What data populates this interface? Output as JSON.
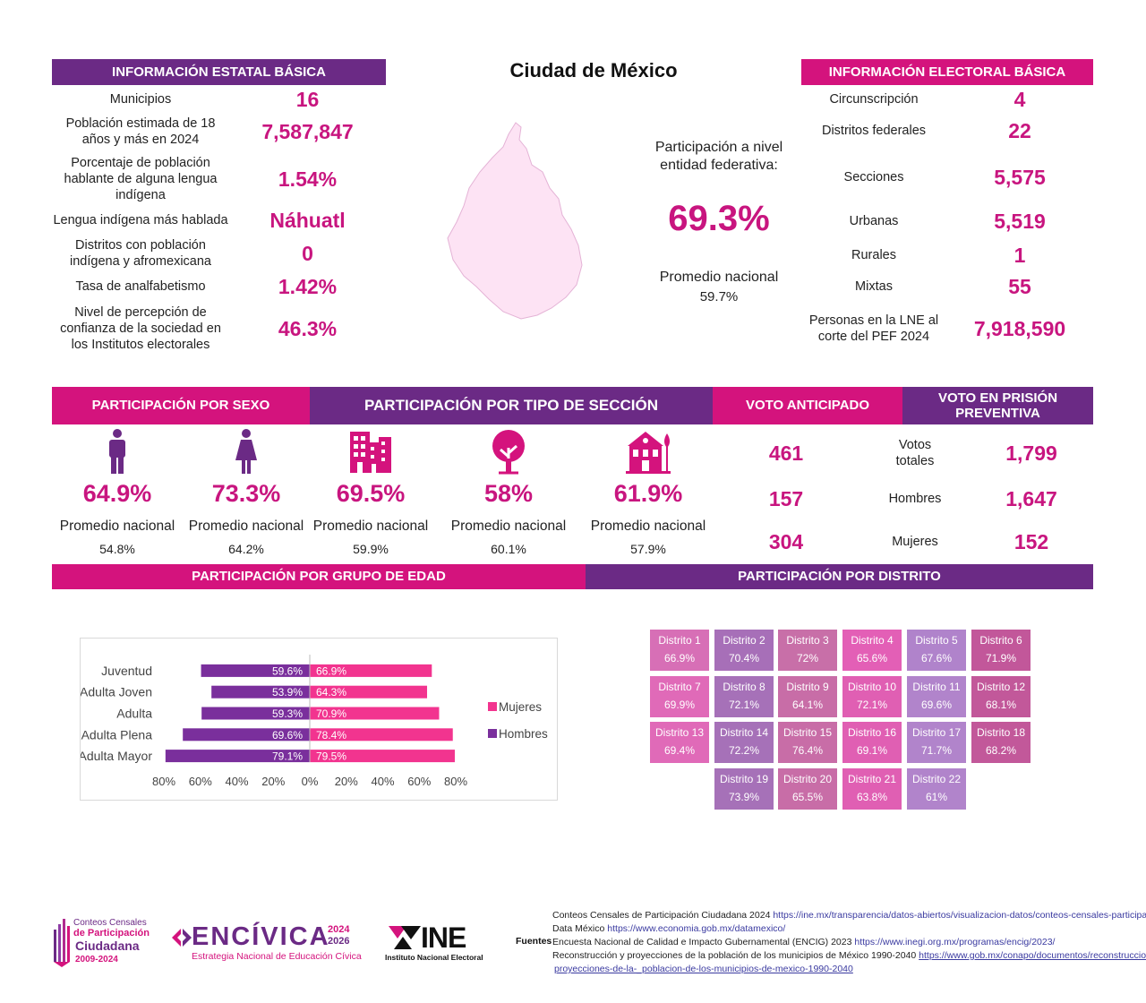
{
  "title": "Ciudad de México",
  "estatal": {
    "header": "INFORMACIÓN ESTATAL BÁSICA",
    "rows": [
      {
        "label": "Municipios",
        "value": "16"
      },
      {
        "label": "Población estimada de 18 años y más en 2024",
        "value": "7,587,847"
      },
      {
        "label": "Porcentaje de población hablante de alguna lengua indígena",
        "value": "1.54%"
      },
      {
        "label": "Lengua indígena más hablada",
        "value": "Náhuatl"
      },
      {
        "label": "Distritos con población indígena y afromexicana",
        "value": "0"
      },
      {
        "label": "Tasa de analfabetismo",
        "value": "1.42%"
      },
      {
        "label": "Nivel de percepción de confianza de la sociedad en los Institutos electorales",
        "value": "46.3%"
      }
    ]
  },
  "center": {
    "participacion_label": "Participación a nivel entidad federativa:",
    "participacion_value": "69.3%",
    "promedio_label": "Promedio nacional",
    "promedio_value": "59.7%"
  },
  "electoral": {
    "header": "INFORMACIÓN ELECTORAL BÁSICA",
    "rows": [
      {
        "label": "Circunscripción",
        "value": "4"
      },
      {
        "label": "Distritos federales",
        "value": "22"
      },
      {
        "label": "Secciones",
        "value": "5,575"
      },
      {
        "label": "Urbanas",
        "value": "5,519"
      },
      {
        "label": "Rurales",
        "value": "1"
      },
      {
        "label": "Mixtas",
        "value": "55"
      },
      {
        "label": "Personas en la LNE al corte del PEF 2024",
        "value": "7,918,590"
      }
    ]
  },
  "headers2": {
    "sexo": "PARTICIPACIÓN POR SEXO",
    "seccion": "PARTICIPACIÓN POR TIPO DE SECCIÓN",
    "anticipado": "VOTO ANTICIPADO",
    "prision": "VOTO EN PRISIÓN PREVENTIVA",
    "edad": "PARTICIPACIÓN POR GRUPO DE EDAD",
    "distrito": "PARTICIPACIÓN POR DISTRITO"
  },
  "participacion_items": [
    {
      "icon": "man-icon",
      "value": "64.9%",
      "label": "Promedio nacional",
      "nacional": "54.8%"
    },
    {
      "icon": "woman-icon",
      "value": "73.3%",
      "label": "Promedio nacional",
      "nacional": "64.2%"
    },
    {
      "icon": "buildings-icon",
      "value": "69.5%",
      "label": "Promedio nacional",
      "nacional": "59.9%"
    },
    {
      "icon": "tree-icon",
      "value": "58%",
      "label": "Promedio nacional",
      "nacional": "60.1%"
    },
    {
      "icon": "house-icon",
      "value": "61.9%",
      "label": "Promedio nacional",
      "nacional": "57.9%"
    }
  ],
  "votos": [
    {
      "anticipado": "461",
      "label": "Votos totales",
      "prision": "1,799"
    },
    {
      "anticipado": "157",
      "label": "Hombres",
      "prision": "1,647"
    },
    {
      "anticipado": "304",
      "label": "Mujeres",
      "prision": "152"
    }
  ],
  "chart_data": {
    "type": "bar",
    "orientation": "horizontal-diverging",
    "categories": [
      "Juventud",
      "Adulta Joven",
      "Adulta",
      "Adulta Plena",
      "Adulta Mayor"
    ],
    "series": [
      {
        "name": "Mujeres",
        "color": "#f2348f",
        "values": [
          66.9,
          64.3,
          70.9,
          78.4,
          79.5
        ],
        "labels": [
          "66.9%",
          "64.3%",
          "70.9%",
          "78.4%",
          "79.5%"
        ]
      },
      {
        "name": "Hombres",
        "color": "#7a2f9c",
        "values": [
          59.6,
          53.9,
          59.3,
          69.6,
          79.1
        ],
        "labels": [
          "59.6%",
          "53.9%",
          "59.3%",
          "69.6%",
          "79.1%"
        ]
      }
    ],
    "xticks": [
      "80%",
      "60%",
      "40%",
      "20%",
      "0%",
      "20%",
      "40%",
      "60%",
      "80%"
    ],
    "xlim": [
      -80,
      80
    ],
    "legend": "right"
  },
  "distritos": [
    {
      "name": "Distrito 1",
      "value": "66.9%",
      "color": "#d76fb6"
    },
    {
      "name": "Distrito 2",
      "value": "70.4%",
      "color": "#a76fb8"
    },
    {
      "name": "Distrito 3",
      "value": "72%",
      "color": "#c86fa8"
    },
    {
      "name": "Distrito 4",
      "value": "65.6%",
      "color": "#e35fb6"
    },
    {
      "name": "Distrito 5",
      "value": "67.6%",
      "color": "#b083cb"
    },
    {
      "name": "Distrito 6",
      "value": "71.9%",
      "color": "#c2579a"
    },
    {
      "name": "Distrito 7",
      "value": "69.9%",
      "color": "#e06ab8"
    },
    {
      "name": "Distrito 8",
      "value": "72.1%",
      "color": "#a671b8"
    },
    {
      "name": "Distrito 9",
      "value": "64.1%",
      "color": "#c86da7"
    },
    {
      "name": "Distrito 10",
      "value": "72.1%",
      "color": "#e05fb3"
    },
    {
      "name": "Distrito 11",
      "value": "69.6%",
      "color": "#b184cb"
    },
    {
      "name": "Distrito 12",
      "value": "68.1%",
      "color": "#c2589a"
    },
    {
      "name": "Distrito 13",
      "value": "69.4%",
      "color": "#e06ab8"
    },
    {
      "name": "Distrito 14",
      "value": "72.2%",
      "color": "#a671b8"
    },
    {
      "name": "Distrito 15",
      "value": "76.4%",
      "color": "#c86da7"
    },
    {
      "name": "Distrito 16",
      "value": "69.1%",
      "color": "#e05fb3"
    },
    {
      "name": "Distrito 17",
      "value": "71.7%",
      "color": "#b184cb"
    },
    {
      "name": "Distrito 18",
      "value": "68.2%",
      "color": "#c2589a"
    },
    {
      "name": "Distrito 19",
      "value": "73.9%",
      "color": "#a671b8"
    },
    {
      "name": "Distrito 20",
      "value": "65.5%",
      "color": "#c86da7"
    },
    {
      "name": "Distrito 21",
      "value": "63.8%",
      "color": "#e05fb3"
    },
    {
      "name": "Distrito 22",
      "value": "61%",
      "color": "#b184cb"
    }
  ],
  "logos": {
    "conteos": [
      "Conteos Censales",
      "de Participación",
      "Ciudadana",
      "2009-2024"
    ],
    "encivica": "ENCÍVICA",
    "encivica_years": [
      "2024",
      "2026"
    ],
    "encivica_sub": "Estrategia Nacional de Educación Cívica",
    "ine": "INE",
    "ine_sub": "Instituto Nacional Electoral"
  },
  "fuentes": {
    "label": "Fuentes",
    "lines": [
      {
        "text": "Conteos Censales de Participación Ciudadana 2024 ",
        "link": "https://ine.mx/transparencia/datos-abiertos/visualizacion-datos/conteos-censales-participacion/"
      },
      {
        "text": "Data México ",
        "link": "https://www.economia.gob.mx/datamexico/"
      },
      {
        "text": "Encuesta Nacional de Calidad e Impacto Gubernamental (ENCIG) 2023 ",
        "link": "https://www.inegi.org.mx/programas/encig/2023/"
      },
      {
        "text": "Reconstrucción y proyecciones de la población de los municipios de México 1990-2040 ",
        "link": "https://www.gob.mx/conapo/documentos/reconstruccion-y-"
      },
      {
        "text": "",
        "link": "proyecciones-de-la-_poblacion-de-los-municipios-de-mexico-1990-2040"
      }
    ]
  }
}
